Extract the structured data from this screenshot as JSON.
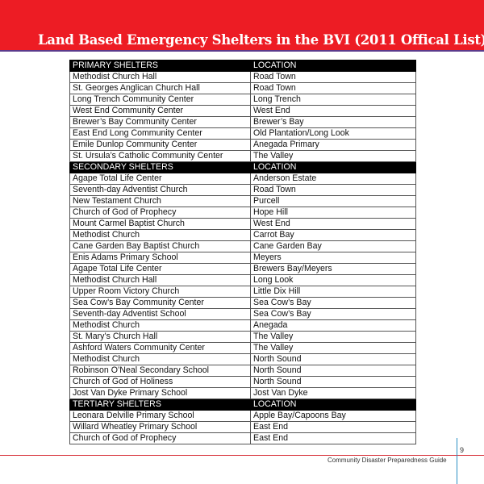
{
  "header": {
    "title": "Land Based Emergency Shelters in the BVI (2011 Offical List)",
    "band_color": "#ed1c24"
  },
  "table": {
    "sections": [
      {
        "heading": "PRIMARY SHELTERS",
        "location_heading": "LOCATION",
        "rows": [
          [
            "Methodist Church Hall",
            "Road Town"
          ],
          [
            "St.  Georges Anglican Church Hall",
            "Road Town"
          ],
          [
            "Long Trench Community Center",
            "Long Trench"
          ],
          [
            "West End Community Center",
            "West End"
          ],
          [
            "Brewer’s Bay Community Center",
            "Brewer’s Bay"
          ],
          [
            "East End Long Community Center",
            "Old Plantation/Long Look"
          ],
          [
            "Emile Dunlop Community Center",
            "Anegada Primary"
          ],
          [
            "St. Ursula’s Catholic Community Center",
            "The Valley"
          ]
        ]
      },
      {
        "heading": "SECONDARY SHELTERS",
        "location_heading": "LOCATION",
        "rows": [
          [
            "Agape Total Life Center",
            "Anderson Estate"
          ],
          [
            "Seventh-day Adventist Church",
            "Road Town"
          ],
          [
            "New Testament Church",
            "Purcell"
          ],
          [
            "Church of God of Prophecy",
            "Hope Hill"
          ],
          [
            "Mount Carmel Baptist Church",
            "West End"
          ],
          [
            "Methodist Church",
            "Carrot Bay"
          ],
          [
            "Cane Garden Bay Baptist Church",
            "Cane Garden Bay"
          ],
          [
            "Enis Adams Primary School",
            "Meyers"
          ],
          [
            "Agape Total Life Center",
            "Brewers Bay/Meyers"
          ],
          [
            "Methodist Church Hall",
            "Long Look"
          ],
          [
            "Upper Room Victory Church",
            "Little Dix Hill"
          ],
          [
            "Sea Cow’s Bay Community Center",
            "Sea Cow’s Bay"
          ],
          [
            "Seventh-day Adventist School",
            "Sea Cow’s Bay"
          ],
          [
            "Methodist Church",
            "Anegada"
          ],
          [
            "St. Mary’s Church Hall",
            "The Valley"
          ],
          [
            "Ashford Waters Community Center",
            "The Valley"
          ],
          [
            "Methodist Church",
            "North Sound"
          ],
          [
            "Robinson O’Neal Secondary School",
            "North Sound"
          ],
          [
            "Church of God of Holiness",
            "North Sound"
          ],
          [
            "Jost Van Dyke Primary School",
            "Jost Van Dyke"
          ]
        ]
      },
      {
        "heading": "TERTIARY SHELTERS",
        "location_heading": "LOCATION",
        "rows": [
          [
            "Leonara Delville Primary School",
            "Apple Bay/Capoons Bay"
          ],
          [
            "Willard Wheatley Primary School",
            "East End"
          ],
          [
            "Church of God of Prophecy",
            "East End"
          ]
        ]
      }
    ]
  },
  "footer": {
    "page_number": "9",
    "text": "Community Disaster Preparedness Guide"
  }
}
